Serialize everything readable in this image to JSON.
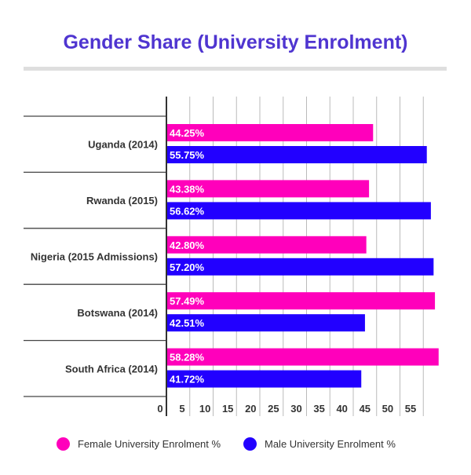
{
  "chart_data": {
    "type": "bar",
    "orientation": "horizontal",
    "title": "Gender Share (University Enrolment)",
    "categories": [
      "Uganda (2014)",
      "Rwanda (2015)",
      "Nigeria (2015 Admissions)",
      "Botswana (2014)",
      "South Africa (2014)"
    ],
    "series": [
      {
        "name": "Female University Enrolment %",
        "color": "#ff00bb",
        "values": [
          44.25,
          43.38,
          42.8,
          57.49,
          58.28
        ],
        "labels": [
          "44.25%",
          "43.38%",
          "42.80%",
          "57.49%",
          "58.28%"
        ]
      },
      {
        "name": "Male University Enrolment %",
        "color": "#2200ff",
        "values": [
          55.75,
          56.62,
          57.2,
          42.51,
          41.72
        ],
        "labels": [
          "55.75%",
          "56.62%",
          "57.20%",
          "42.51%",
          "41.72%"
        ]
      }
    ],
    "xticks": [
      "0",
      "5",
      "10",
      "15",
      "20",
      "25",
      "30",
      "35",
      "40",
      "45",
      "50",
      "55"
    ],
    "xlim": [
      0,
      60
    ],
    "grid": true,
    "legend": "bottom"
  }
}
